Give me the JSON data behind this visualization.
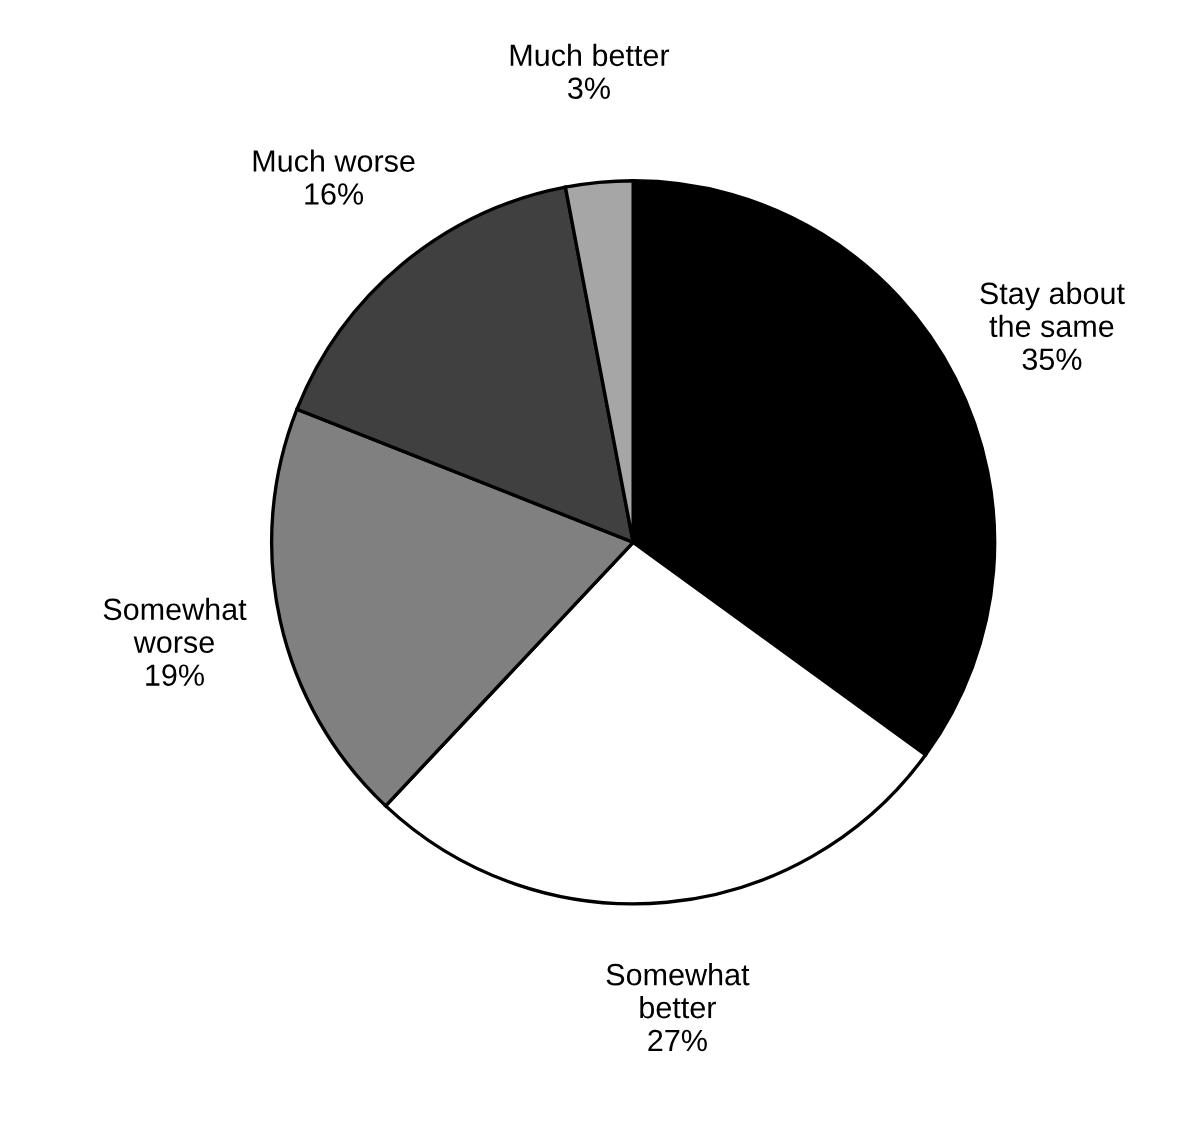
{
  "chart_data": {
    "type": "pie",
    "categories": [
      "Stay about the same",
      "Somewhat better",
      "Somewhat worse",
      "Much worse",
      "Much better"
    ],
    "values": [
      35,
      27,
      19,
      16,
      3
    ],
    "colors": [
      "#000000",
      "#ffffff",
      "#808080",
      "#404040",
      "#a6a6a6"
    ],
    "value_labels": [
      "35%",
      "27%",
      "19%",
      "16%",
      "3%"
    ],
    "legend": false
  }
}
